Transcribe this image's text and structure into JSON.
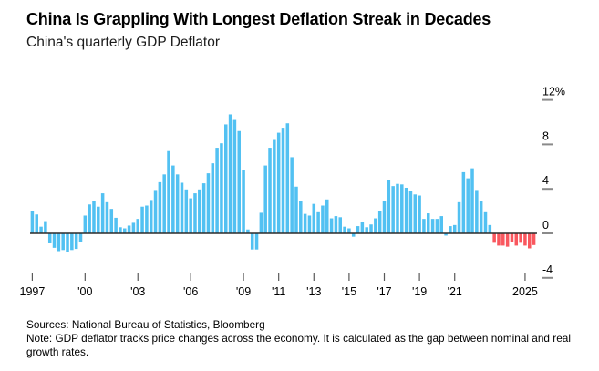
{
  "header": {
    "title": "China Is Grappling With Longest Deflation Streak in Decades",
    "subtitle": "China's quarterly GDP Deflator"
  },
  "chart_data": {
    "type": "bar",
    "title": "China's quarterly GDP Deflator",
    "unit": "%",
    "x_start_quarter": "1997-Q1",
    "x_end_quarter": "2025-Q3",
    "frequency": "quarterly",
    "values": [
      2.0,
      1.7,
      0.6,
      1.1,
      -0.9,
      -1.3,
      -1.6,
      -1.5,
      -1.7,
      -1.5,
      -1.4,
      -0.8,
      1.6,
      2.6,
      2.9,
      2.4,
      3.6,
      2.8,
      2.2,
      1.4,
      0.55,
      0.45,
      0.7,
      0.95,
      1.3,
      2.4,
      2.5,
      3.0,
      3.9,
      4.6,
      5.3,
      7.4,
      6.1,
      5.3,
      4.55,
      3.95,
      3.15,
      3.6,
      3.95,
      4.5,
      5.4,
      6.3,
      7.7,
      8.1,
      9.8,
      10.7,
      10.2,
      9.2,
      5.7,
      0.35,
      -1.45,
      -1.45,
      1.85,
      6.1,
      7.7,
      8.4,
      9.05,
      9.5,
      9.9,
      6.85,
      4.2,
      2.9,
      1.75,
      1.6,
      2.65,
      1.9,
      2.5,
      3.05,
      1.35,
      1.55,
      1.45,
      0.6,
      0.45,
      -0.3,
      0.65,
      1.0,
      0.55,
      0.8,
      1.35,
      2.0,
      2.95,
      4.8,
      4.25,
      4.45,
      4.4,
      4.1,
      3.8,
      3.5,
      3.4,
      1.3,
      1.8,
      1.3,
      1.3,
      1.55,
      -0.2,
      0.65,
      0.75,
      2.8,
      5.5,
      4.95,
      5.85,
      3.9,
      2.95,
      1.9,
      0.75,
      -0.85,
      -1.1,
      -1.1,
      -1.2,
      -0.8,
      -1.1,
      -0.85,
      -1.1,
      -1.35,
      -1.05
    ],
    "red_start_index": 105,
    "colors": {
      "bar_blue": "#52c1f2",
      "deflation_red": "#f9575e",
      "axis_line": "#2b2b2b",
      "tick_dash": "#8a8a8a",
      "x_tick_mark": "#5a5a5a",
      "label_text": "#000000"
    },
    "y_axis": {
      "ticks": [
        {
          "value": 12,
          "label": "12%"
        },
        {
          "value": 8,
          "label": "8"
        },
        {
          "value": 4,
          "label": "4"
        },
        {
          "value": 0,
          "label": "0"
        },
        {
          "value": -4,
          "label": "-4"
        }
      ],
      "ylim": [
        -4.5,
        12.5
      ],
      "position": "right",
      "grid": false
    },
    "x_axis": {
      "ticks": [
        {
          "index": 0,
          "label": "1997"
        },
        {
          "index": 12,
          "label": "'00"
        },
        {
          "index": 24,
          "label": "'03"
        },
        {
          "index": 36,
          "label": "'06"
        },
        {
          "index": 48,
          "label": "'09"
        },
        {
          "index": 56,
          "label": "'11"
        },
        {
          "index": 64,
          "label": "'13"
        },
        {
          "index": 72,
          "label": "'15"
        },
        {
          "index": 80,
          "label": "'17"
        },
        {
          "index": 88,
          "label": "'19"
        },
        {
          "index": 96,
          "label": "'21"
        },
        {
          "index": 112,
          "label": "2025"
        }
      ]
    }
  },
  "footer": {
    "sources": "Sources: National Bureau of Statistics, Bloomberg",
    "note": "Note: GDP deflator tracks price changes across the economy. It is calculated as the gap between nominal and real growth rates."
  }
}
